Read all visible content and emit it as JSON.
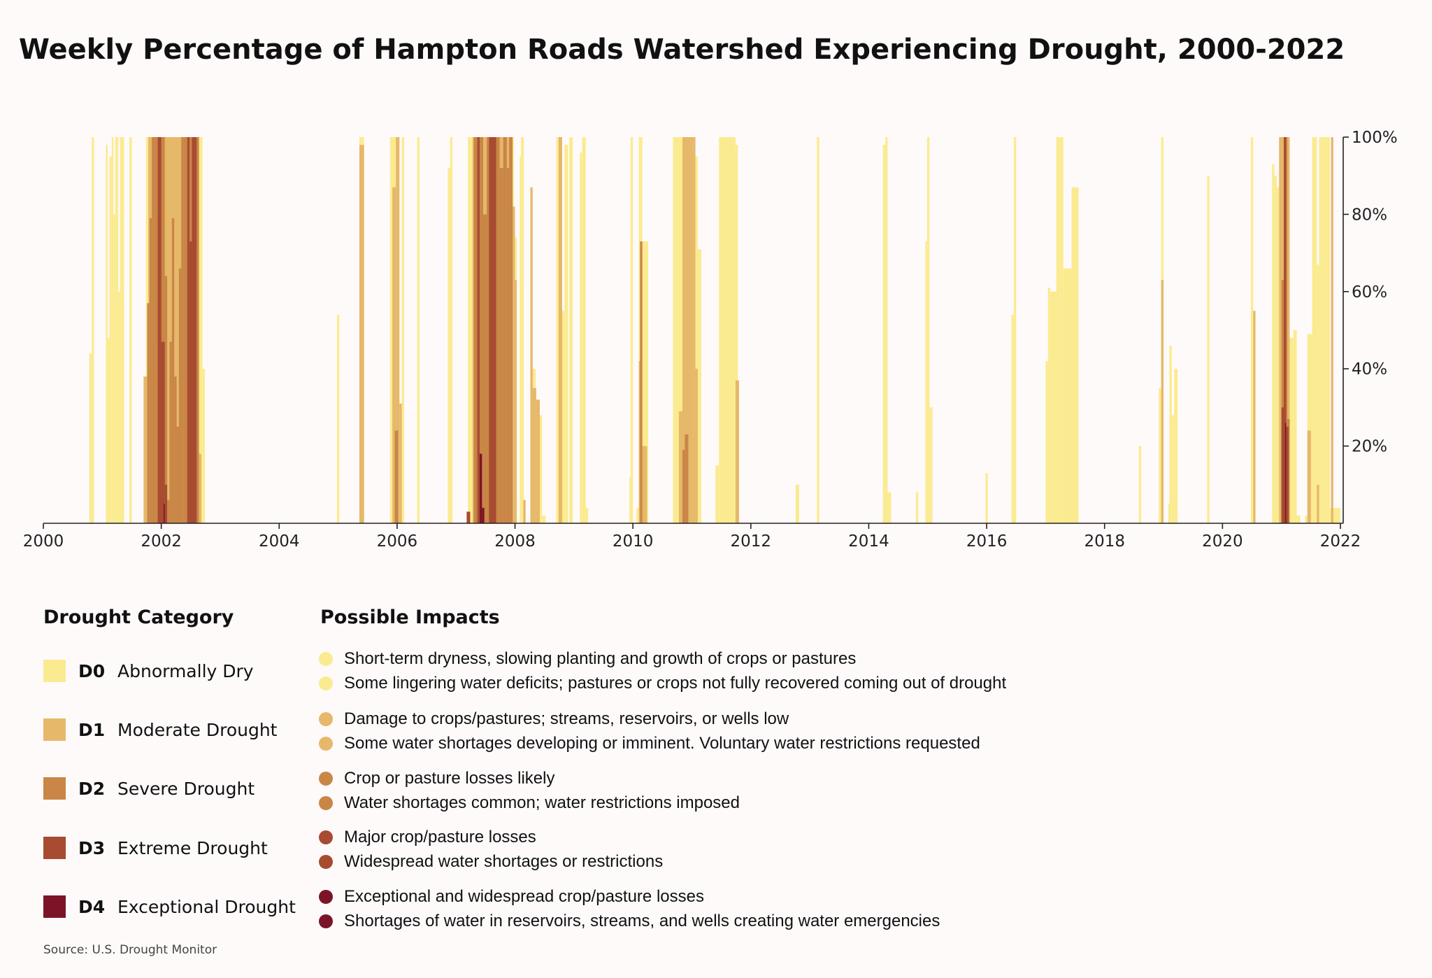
{
  "colors": {
    "D0": "#fbeb90",
    "D1": "#e6b86a",
    "D2": "#c98646",
    "D3": "#a74b31",
    "D4": "#7c1427"
  },
  "chart_data": {
    "type": "area",
    "title": "Weekly Percentage of Hampton Roads Watershed Experiencing Drought, 2000-2022",
    "xlabel": "",
    "ylabel": "",
    "xlim": [
      2000,
      2022
    ],
    "ylim": [
      0,
      100
    ],
    "x_ticks": [
      "2000",
      "2002",
      "2004",
      "2006",
      "2008",
      "2010",
      "2012",
      "2014",
      "2016",
      "2018",
      "2020",
      "2022"
    ],
    "y_ticks": [
      "20%",
      "40%",
      "60%",
      "80%",
      "100%"
    ],
    "y_axis_side": "right",
    "grid": false,
    "source": "Source: U.S. Drought Monitor",
    "series": [
      {
        "name": "D0",
        "values": [
          [
            2000.78,
            2000.82,
            44
          ],
          [
            2000.82,
            2000.86,
            100
          ],
          [
            2001.06,
            2001.09,
            98
          ],
          [
            2001.09,
            2001.12,
            48
          ],
          [
            2001.12,
            2001.16,
            95
          ],
          [
            2001.16,
            2001.19,
            100
          ],
          [
            2001.19,
            2001.22,
            80
          ],
          [
            2001.22,
            2001.27,
            100
          ],
          [
            2001.27,
            2001.3,
            60
          ],
          [
            2001.3,
            2001.37,
            100
          ],
          [
            2001.46,
            2001.5,
            100
          ],
          [
            2001.7,
            2001.74,
            38
          ],
          [
            2001.74,
            2001.78,
            100
          ],
          [
            2001.78,
            2002.7,
            100
          ],
          [
            2002.7,
            2002.74,
            40
          ],
          [
            2004.98,
            2005.02,
            54
          ],
          [
            2005.36,
            2005.44,
            100
          ],
          [
            2005.88,
            2006.0,
            100
          ],
          [
            2006.08,
            2006.12,
            100
          ],
          [
            2006.34,
            2006.38,
            100
          ],
          [
            2006.86,
            2006.9,
            92
          ],
          [
            2006.9,
            2006.94,
            100
          ],
          [
            2007.2,
            2007.98,
            100
          ],
          [
            2007.98,
            2008.03,
            74
          ],
          [
            2008.08,
            2008.1,
            95
          ],
          [
            2008.1,
            2008.15,
            100
          ],
          [
            2008.28,
            2008.35,
            40
          ],
          [
            2008.38,
            2008.42,
            32
          ],
          [
            2008.42,
            2008.46,
            28
          ],
          [
            2008.46,
            2008.52,
            2
          ],
          [
            2008.7,
            2008.76,
            100
          ],
          [
            2008.76,
            2008.84,
            55
          ],
          [
            2008.84,
            2008.9,
            98
          ],
          [
            2008.92,
            2008.98,
            100
          ],
          [
            2009.1,
            2009.14,
            96
          ],
          [
            2009.14,
            2009.2,
            100
          ],
          [
            2009.2,
            2009.24,
            4
          ],
          [
            2009.94,
            2009.96,
            12
          ],
          [
            2009.96,
            2010.0,
            100
          ],
          [
            2010.06,
            2010.1,
            4
          ],
          [
            2010.1,
            2010.16,
            100
          ],
          [
            2010.16,
            2010.26,
            73
          ],
          [
            2010.68,
            2010.96,
            100
          ],
          [
            2011.0,
            2011.06,
            100
          ],
          [
            2011.06,
            2011.1,
            95
          ],
          [
            2011.1,
            2011.16,
            71
          ],
          [
            2011.4,
            2011.46,
            15
          ],
          [
            2011.46,
            2011.74,
            100
          ],
          [
            2011.74,
            2011.78,
            98
          ],
          [
            2012.76,
            2012.82,
            10
          ],
          [
            2013.12,
            2013.16,
            100
          ],
          [
            2014.24,
            2014.28,
            98
          ],
          [
            2014.28,
            2014.32,
            100
          ],
          [
            2014.3,
            2014.38,
            8
          ],
          [
            2014.8,
            2014.84,
            8
          ],
          [
            2014.96,
            2014.99,
            73
          ],
          [
            2014.99,
            2015.03,
            100
          ],
          [
            2015.03,
            2015.08,
            30
          ],
          [
            2015.98,
            2016.02,
            13
          ],
          [
            2016.42,
            2016.46,
            54
          ],
          [
            2016.46,
            2016.5,
            100
          ],
          [
            2017.0,
            2017.04,
            42
          ],
          [
            2017.04,
            2017.08,
            61
          ],
          [
            2017.08,
            2017.18,
            60
          ],
          [
            2017.18,
            2017.24,
            100
          ],
          [
            2017.24,
            2017.3,
            100
          ],
          [
            2017.3,
            2017.44,
            66
          ],
          [
            2017.44,
            2017.56,
            87
          ],
          [
            2018.58,
            2018.62,
            20
          ],
          [
            2018.92,
            2018.96,
            35
          ],
          [
            2018.96,
            2019.0,
            100
          ],
          [
            2019.08,
            2019.1,
            5
          ],
          [
            2019.1,
            2019.14,
            46
          ],
          [
            2019.14,
            2019.18,
            28
          ],
          [
            2019.18,
            2019.24,
            40
          ],
          [
            2019.74,
            2019.78,
            90
          ],
          [
            2020.48,
            2020.52,
            100
          ],
          [
            2020.84,
            2020.88,
            93
          ],
          [
            2020.88,
            2020.92,
            90
          ],
          [
            2020.92,
            2020.96,
            87
          ],
          [
            2020.96,
            2021.14,
            100
          ],
          [
            2021.14,
            2021.2,
            48
          ],
          [
            2021.2,
            2021.26,
            50
          ],
          [
            2021.26,
            2021.32,
            2
          ],
          [
            2021.4,
            2021.44,
            2
          ],
          [
            2021.44,
            2021.52,
            49
          ],
          [
            2021.52,
            2021.6,
            100
          ],
          [
            2021.6,
            2021.64,
            67
          ],
          [
            2021.64,
            2021.7,
            100
          ],
          [
            2021.7,
            2021.76,
            100
          ],
          [
            2021.76,
            2021.82,
            100
          ],
          [
            2021.82,
            2022.0,
            4
          ]
        ]
      },
      {
        "name": "D1",
        "values": [
          [
            2001.7,
            2001.78,
            38
          ],
          [
            2001.78,
            2002.64,
            100
          ],
          [
            2002.64,
            2002.68,
            18
          ],
          [
            2005.36,
            2005.44,
            98
          ],
          [
            2005.92,
            2005.98,
            87
          ],
          [
            2005.98,
            2006.04,
            100
          ],
          [
            2006.04,
            2006.08,
            31
          ],
          [
            2007.28,
            2007.95,
            100
          ],
          [
            2007.95,
            2008.0,
            82
          ],
          [
            2008.0,
            2008.03,
            63
          ],
          [
            2008.14,
            2008.18,
            6
          ],
          [
            2008.26,
            2008.3,
            87
          ],
          [
            2008.3,
            2008.36,
            35
          ],
          [
            2008.36,
            2008.42,
            32
          ],
          [
            2008.74,
            2008.8,
            100
          ],
          [
            2010.1,
            2010.14,
            42
          ],
          [
            2010.14,
            2010.24,
            20
          ],
          [
            2010.78,
            2010.84,
            29
          ],
          [
            2010.84,
            2011.02,
            100
          ],
          [
            2011.02,
            2011.06,
            100
          ],
          [
            2011.06,
            2011.1,
            40
          ],
          [
            2011.74,
            2011.8,
            37
          ],
          [
            2018.96,
            2019.0,
            63
          ],
          [
            2020.52,
            2020.56,
            55
          ],
          [
            2020.96,
            2021.14,
            100
          ],
          [
            2021.44,
            2021.5,
            24
          ],
          [
            2021.6,
            2021.64,
            10
          ],
          [
            2021.84,
            2021.88,
            100
          ]
        ]
      },
      {
        "name": "D2",
        "values": [
          [
            2001.76,
            2001.8,
            57
          ],
          [
            2001.8,
            2001.84,
            79
          ],
          [
            2001.84,
            2002.06,
            100
          ],
          [
            2002.06,
            2002.1,
            64
          ],
          [
            2002.1,
            2002.14,
            6
          ],
          [
            2002.14,
            2002.18,
            47
          ],
          [
            2002.18,
            2002.22,
            79
          ],
          [
            2002.22,
            2002.26,
            38
          ],
          [
            2002.26,
            2002.3,
            25
          ],
          [
            2002.3,
            2002.34,
            66
          ],
          [
            2002.34,
            2002.38,
            100
          ],
          [
            2002.38,
            2002.44,
            100
          ],
          [
            2002.44,
            2002.48,
            73
          ],
          [
            2002.48,
            2002.54,
            100
          ],
          [
            2002.54,
            2002.64,
            100
          ],
          [
            2005.96,
            2006.02,
            24
          ],
          [
            2007.3,
            2007.36,
            100
          ],
          [
            2007.36,
            2007.4,
            98
          ],
          [
            2007.4,
            2007.46,
            100
          ],
          [
            2007.46,
            2007.52,
            80
          ],
          [
            2007.52,
            2007.58,
            100
          ],
          [
            2007.58,
            2007.66,
            100
          ],
          [
            2007.66,
            2007.74,
            100
          ],
          [
            2007.74,
            2007.8,
            92
          ],
          [
            2007.8,
            2007.86,
            100
          ],
          [
            2007.86,
            2007.9,
            92
          ],
          [
            2007.9,
            2007.96,
            100
          ],
          [
            2010.12,
            2010.16,
            73
          ],
          [
            2010.84,
            2010.88,
            19
          ],
          [
            2010.88,
            2010.94,
            23
          ],
          [
            2021.0,
            2021.06,
            63
          ],
          [
            2021.06,
            2021.1,
            100
          ],
          [
            2021.1,
            2021.14,
            27
          ]
        ]
      },
      {
        "name": "D3",
        "values": [
          [
            2001.94,
            2002.0,
            100
          ],
          [
            2002.0,
            2002.06,
            47
          ],
          [
            2002.06,
            2002.1,
            10
          ],
          [
            2002.44,
            2002.48,
            100
          ],
          [
            2002.48,
            2002.52,
            73
          ],
          [
            2002.52,
            2002.6,
            100
          ],
          [
            2007.18,
            2007.24,
            3
          ],
          [
            2007.36,
            2007.4,
            100
          ],
          [
            2007.56,
            2007.62,
            100
          ],
          [
            2007.62,
            2007.68,
            100
          ],
          [
            2021.0,
            2021.04,
            30
          ],
          [
            2021.04,
            2021.08,
            100
          ],
          [
            2021.08,
            2021.12,
            25
          ]
        ]
      },
      {
        "name": "D4",
        "values": [
          [
            2002.04,
            2002.06,
            5
          ],
          [
            2007.4,
            2007.44,
            18
          ],
          [
            2007.44,
            2007.48,
            4
          ],
          [
            2021.06,
            2021.08,
            26
          ]
        ]
      }
    ]
  },
  "legend": {
    "category_heading": "Drought Category",
    "impacts_heading": "Possible Impacts",
    "categories": [
      {
        "code": "D0",
        "label": "Abnormally Dry"
      },
      {
        "code": "D1",
        "label": "Moderate Drought"
      },
      {
        "code": "D2",
        "label": "Severe Drought"
      },
      {
        "code": "D3",
        "label": "Extreme Drought"
      },
      {
        "code": "D4",
        "label": "Exceptional Drought"
      }
    ],
    "impacts": [
      {
        "category": "D0",
        "text": "Short-term dryness, slowing planting and growth of crops or pastures"
      },
      {
        "category": "D0",
        "text": "Some lingering water deficits; pastures or crops not fully recovered coming out of drought"
      },
      {
        "category": "D1",
        "text": "Damage to crops/pastures; streams, reservoirs, or wells low"
      },
      {
        "category": "D1",
        "text": "Some water shortages developing or imminent. Voluntary water restrictions requested"
      },
      {
        "category": "D2",
        "text": "Crop or pasture losses likely"
      },
      {
        "category": "D2",
        "text": "Water shortages common; water restrictions imposed"
      },
      {
        "category": "D3",
        "text": "Major crop/pasture losses"
      },
      {
        "category": "D3",
        "text": "Widespread water shortages or restrictions"
      },
      {
        "category": "D4",
        "text": "Exceptional and widespread crop/pasture losses"
      },
      {
        "category": "D4",
        "text": "Shortages of water in reservoirs, streams, and wells creating water emergencies"
      }
    ]
  }
}
